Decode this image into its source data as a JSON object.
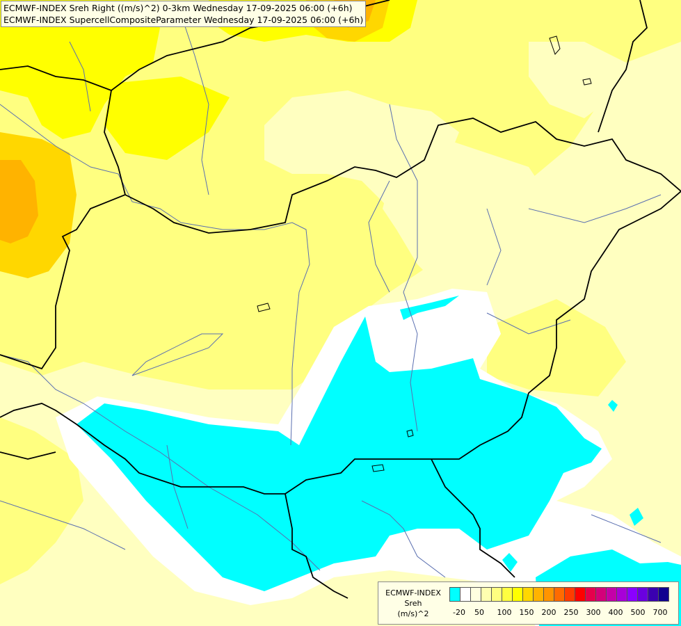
{
  "header": {
    "line1": "ECMWF-INDEX Sreh Right ((m/s)^2) 0-3km Wednesday 17-09-2025 06:00 (+6h)",
    "line2": "ECMWF-INDEX SupercellCompositeParameter Wednesday 17-09-2025 06:00 (+6h)"
  },
  "legend": {
    "line1": "ECMWF-INDEX",
    "line2": "Sreh",
    "line3": "(m/s)^2",
    "colors": [
      "#00ffff",
      "#ffffff",
      "#ffffe0",
      "#ffffb0",
      "#ffff80",
      "#ffff40",
      "#ffff00",
      "#ffd700",
      "#ffb300",
      "#ff9400",
      "#ff6b00",
      "#ff3c00",
      "#ff0000",
      "#e6004c",
      "#d4007a",
      "#c400a8",
      "#a800d8",
      "#8a00ff",
      "#6a00e0",
      "#3a00b0",
      "#100090"
    ],
    "tick_labels": [
      "-20",
      "50",
      "100",
      "150",
      "200",
      "250",
      "300",
      "400",
      "500",
      "700"
    ]
  },
  "colors": {
    "cyan": "#00ffff",
    "pale": "#ffffc0",
    "light_yellow": "#ffff80",
    "yellow": "#ffff00",
    "gold": "#ffd700",
    "orange": "#ffb300",
    "border": "#000000",
    "river": "#5a6fb0"
  }
}
